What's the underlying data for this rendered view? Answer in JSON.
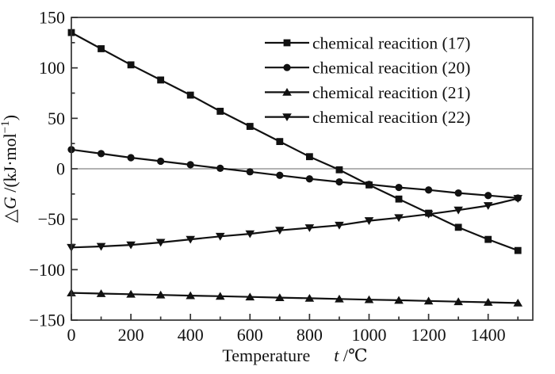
{
  "chart_data": {
    "type": "line",
    "title": "",
    "xlabel": {
      "pre": "Temperature",
      "var": "t",
      "post": " /℃"
    },
    "ylabel": {
      "delta": "△",
      "var": "G",
      "mid": " /(kJ·mol",
      "sup": "−1",
      "post": ")"
    },
    "xlim": [
      0,
      1550
    ],
    "ylim": [
      -150,
      150
    ],
    "x_major_ticks": [
      0,
      200,
      400,
      600,
      800,
      1000,
      1200,
      1400
    ],
    "x_minor_step": 100,
    "y_major_ticks": [
      150,
      100,
      50,
      0,
      -50,
      -100,
      -150
    ],
    "y_minor_step": 25,
    "grid": false,
    "zero_line": true,
    "legend_position": "upper-right-inside",
    "line_color": "#111111",
    "frame_color": "#333333",
    "zero_line_color": "#666666",
    "x": [
      0,
      100,
      200,
      300,
      400,
      500,
      600,
      700,
      800,
      900,
      1000,
      1100,
      1200,
      1300,
      1400,
      1500
    ],
    "series": [
      {
        "name": "chemical reacition (17)",
        "marker": "square",
        "values": [
          135,
          119,
          103,
          88,
          73,
          57,
          42,
          27,
          12,
          -1,
          -16,
          -30,
          -44,
          -58,
          -70,
          -81
        ]
      },
      {
        "name": "chemical reacition (20)",
        "marker": "circle",
        "values": [
          19,
          15,
          11,
          7.5,
          4,
          0.5,
          -3,
          -6.5,
          -10,
          -13,
          -15.5,
          -18.5,
          -21,
          -24,
          -26.5,
          -29
        ]
      },
      {
        "name": "chemical reacition (21)",
        "marker": "triangle-up",
        "values": [
          -123,
          -123.7,
          -124.3,
          -125,
          -125.7,
          -126.3,
          -127,
          -127.7,
          -128.3,
          -129,
          -129.7,
          -130.3,
          -131,
          -131.7,
          -132.3,
          -133
        ]
      },
      {
        "name": "chemical reacition (22)",
        "marker": "triangle-down",
        "values": [
          -78,
          -77,
          -75.5,
          -73,
          -70,
          -67,
          -64.5,
          -61,
          -58.5,
          -56,
          -51.5,
          -48.5,
          -45,
          -41,
          -36.5,
          -29.5
        ]
      }
    ]
  }
}
